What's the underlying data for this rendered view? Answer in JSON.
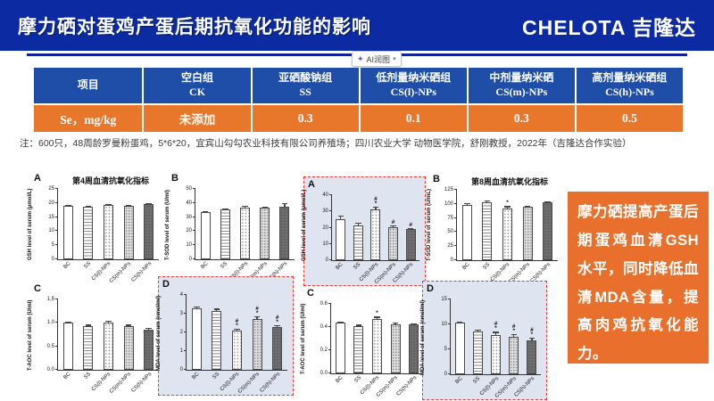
{
  "header": {
    "title": "摩力硒对蛋鸡产蛋后期抗氧化功能的影响",
    "logo": "CHELOTA 吉隆达"
  },
  "toolbar": {
    "ai_label": "AI润图"
  },
  "icons": {
    "ai_sparkle": "✦",
    "caret": "▾"
  },
  "table": {
    "headers": [
      {
        "zh": "项目",
        "en": ""
      },
      {
        "zh": "空白组",
        "en": "CK"
      },
      {
        "zh": "亚硒酸钠组",
        "en": "SS"
      },
      {
        "zh": "低剂量纳米硒组",
        "en": "CS(l)-NPs"
      },
      {
        "zh": "中剂量纳米硒",
        "en": "CS(m)-NPs"
      },
      {
        "zh": "高剂量纳米硒组",
        "en": "CS(h)-NPs"
      }
    ],
    "row": [
      "Se，mg/kg",
      "未添加",
      "0.3",
      "0.1",
      "0.3",
      "0.5"
    ]
  },
  "note": "注：600只，48周龄罗曼粉蛋鸡，5*6*20，宜宾山勾勾农业科技有限公司养殖场；四川农业大学 动物医学院，舒刚教授，2022年（吉隆达合作实验）",
  "callout": {
    "text": "摩力硒提高产蛋后期蛋鸡血清GSH水平，同时降低血清MDA含量，提高肉鸡抗氧化能力。"
  },
  "colors": {
    "header_blue": "#0c2ba2",
    "table_header_blue": "#1e4ea8",
    "orange": "#e8772b",
    "callout_orange": "#e8702c",
    "highlight_border_red": "#f2392f",
    "highlight_bg": "#dfe4f1"
  },
  "chart_data": [
    {
      "type": "bar",
      "panel": "A",
      "title": "第4周血清抗氧化指标",
      "ylabel": "GSH level of serum (μmol/L)",
      "ymax": 25,
      "yticks": [
        {
          "v": 0,
          "t": "0"
        },
        {
          "v": 5,
          "t": "5"
        },
        {
          "v": 10,
          "t": "10"
        },
        {
          "v": 15,
          "t": "15"
        },
        {
          "v": 20,
          "t": "20"
        },
        {
          "v": 25,
          "t": "25"
        }
      ],
      "categories": [
        "BC",
        "SS",
        "CS(l)-NPs",
        "CS(m)-NPs",
        "CS(h)-NPs"
      ],
      "values": [
        19,
        18.6,
        19.3,
        18.9,
        19.5
      ],
      "errors": [
        0.3,
        0.3,
        0.3,
        0.3,
        0.3
      ],
      "sig": [
        "",
        "",
        "",
        "",
        ""
      ],
      "highlight": false
    },
    {
      "type": "bar",
      "panel": "B",
      "title": "",
      "ylabel": "T-SOD level of serum (U/ml)",
      "ymax": 50,
      "yticks": [
        {
          "v": 0,
          "t": "0"
        },
        {
          "v": 10,
          "t": "10"
        },
        {
          "v": 20,
          "t": "20"
        },
        {
          "v": 30,
          "t": "30"
        },
        {
          "v": 40,
          "t": "40"
        },
        {
          "v": 50,
          "t": "50"
        }
      ],
      "categories": [
        "BC",
        "SS",
        "CS(l)-NPs",
        "CS(m)-NPs",
        "CS(h)-NPs"
      ],
      "values": [
        33.5,
        35.5,
        37,
        36.5,
        37.5
      ],
      "errors": [
        0.5,
        0.8,
        1,
        0.8,
        2.2
      ],
      "sig": [
        "",
        "",
        "",
        "",
        ""
      ],
      "highlight": false
    },
    {
      "type": "bar",
      "panel": "C",
      "title": "",
      "ylabel": "T-AOC level of serum (U/ml)",
      "ymax": 1.5,
      "yticks": [
        {
          "v": 0,
          "t": "0.0"
        },
        {
          "v": 0.5,
          "t": "0.5"
        },
        {
          "v": 1.0,
          "t": "1.0"
        },
        {
          "v": 1.5,
          "t": "1.5"
        }
      ],
      "categories": [
        "BC",
        "SS",
        "CS(l)-NPs",
        "CS(m)-NPs",
        "CS(h)-NPs"
      ],
      "values": [
        1.0,
        0.93,
        1.01,
        0.93,
        0.86
      ],
      "errors": [
        0.02,
        0.03,
        0.03,
        0.03,
        0.04
      ],
      "sig": [
        "",
        "",
        "",
        "",
        ""
      ],
      "highlight": false
    },
    {
      "type": "bar",
      "panel": "D",
      "title": "",
      "ylabel": "MDA level of serum (nmol/ml)",
      "ymax": 4,
      "yticks": [
        {
          "v": 0,
          "t": "0"
        },
        {
          "v": 1,
          "t": "1"
        },
        {
          "v": 2,
          "t": "2"
        },
        {
          "v": 3,
          "t": "3"
        },
        {
          "v": 4,
          "t": "4"
        }
      ],
      "categories": [
        "BC",
        "SS",
        "CS(l)-NPs",
        "CS(m)-NPs",
        "CS(h)-NPs"
      ],
      "values": [
        3.3,
        3.15,
        2.1,
        2.7,
        2.3
      ],
      "errors": [
        0.08,
        0.12,
        0.1,
        0.15,
        0.1
      ],
      "sig": [
        "",
        "",
        "#*",
        "#*",
        "#*"
      ],
      "highlight": true
    },
    {
      "type": "bar",
      "panel": "A",
      "title": "",
      "ylabel": "GSH level of serum (μmol/L)",
      "ymax": 40,
      "yticks": [
        {
          "v": 0,
          "t": "0"
        },
        {
          "v": 10,
          "t": "10"
        },
        {
          "v": 20,
          "t": "20"
        },
        {
          "v": 30,
          "t": "30"
        },
        {
          "v": 40,
          "t": "40"
        }
      ],
      "categories": [
        "BC",
        "SS",
        "CS(l)-NPs",
        "CS(m)-NPs",
        "CS(h)-NPs"
      ],
      "values": [
        25,
        21.5,
        31,
        20.3,
        19
      ],
      "errors": [
        2.5,
        1.5,
        2,
        1,
        0.8
      ],
      "sig": [
        "",
        "",
        "#*",
        "#",
        "#"
      ],
      "highlight": true
    },
    {
      "type": "bar",
      "panel": "B",
      "title": "第8周血清抗氧化指标",
      "ylabel": "T-SOD level of serum (U/mL)",
      "ymax": 125,
      "yticks": [
        {
          "v": 0,
          "t": "0"
        },
        {
          "v": 25,
          "t": "25"
        },
        {
          "v": 50,
          "t": "50"
        },
        {
          "v": 75,
          "t": "75"
        },
        {
          "v": 100,
          "t": "100"
        },
        {
          "v": 125,
          "t": "125"
        }
      ],
      "categories": [
        "BC",
        "SS",
        "CS(l)-NPs",
        "CS(m)-NPs",
        "CS(h)-NPs"
      ],
      "values": [
        98,
        103,
        92,
        95,
        103
      ],
      "errors": [
        4,
        3,
        4,
        2,
        1.5
      ],
      "sig": [
        "",
        "",
        "*",
        "",
        ""
      ],
      "highlight": false
    },
    {
      "type": "bar",
      "panel": "C",
      "title": "",
      "ylabel": "T-AOC level of serum (U/ml)",
      "ymax": 0.6,
      "yticks": [
        {
          "v": 0,
          "t": "0.0"
        },
        {
          "v": 0.2,
          "t": "0.2"
        },
        {
          "v": 0.4,
          "t": "0.4"
        },
        {
          "v": 0.6,
          "t": "0.6"
        }
      ],
      "categories": [
        "BC",
        "SS",
        "CS(l)-NPs",
        "CS(m)-NPs",
        "CS(h)-NPs"
      ],
      "values": [
        0.44,
        0.41,
        0.47,
        0.42,
        0.42
      ],
      "errors": [
        0.01,
        0.01,
        0.02,
        0.02,
        0.01
      ],
      "sig": [
        "",
        "",
        "*",
        "",
        ""
      ],
      "highlight": false
    },
    {
      "type": "bar",
      "panel": "D",
      "title": "",
      "ylabel": "MDA level of serum (nmol/ml)",
      "ymax": 15,
      "yticks": [
        {
          "v": 0,
          "t": "0"
        },
        {
          "v": 5,
          "t": "5"
        },
        {
          "v": 10,
          "t": "10"
        },
        {
          "v": 15,
          "t": "15"
        }
      ],
      "categories": [
        "BC",
        "SS",
        "CS(l)-NPs",
        "CS(m)-NPs",
        "CS(h)-NPs"
      ],
      "values": [
        10.3,
        8.6,
        7.9,
        7.5,
        6.8
      ],
      "errors": [
        0.2,
        0.4,
        0.6,
        0.5,
        0.6
      ],
      "sig": [
        "",
        "",
        "#*",
        "#*",
        "#*"
      ],
      "highlight": true
    }
  ]
}
